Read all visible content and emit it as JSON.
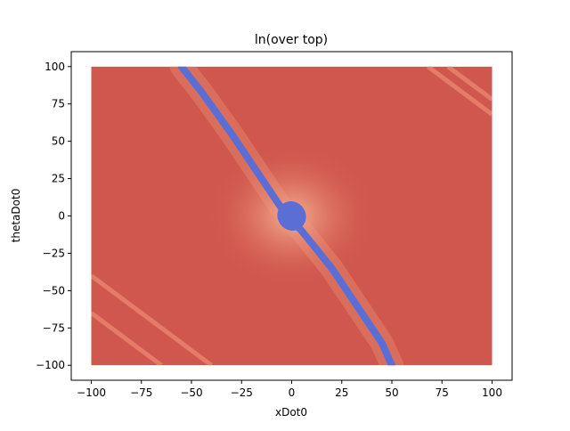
{
  "chart_data": {
    "type": "heatmap",
    "title": "ln(over top)",
    "xlabel": "xDot0",
    "ylabel": "thetaDot0",
    "xlim": [
      -110,
      110
    ],
    "ylim": [
      -110,
      110
    ],
    "data_extent": {
      "x": [
        -100,
        100
      ],
      "y": [
        -100,
        100
      ]
    },
    "xticks": [
      -100,
      -75,
      -50,
      -25,
      0,
      25,
      50,
      75,
      100
    ],
    "yticks": [
      -100,
      -75,
      -50,
      -25,
      0,
      25,
      50,
      75,
      100
    ],
    "grid": false,
    "colormap": "coolwarm",
    "colors": {
      "background_red": "#d0574e",
      "near_band_light": "#ee9a7b",
      "band_blue": "#5a6ed6",
      "stripe_light": "#e9866f"
    },
    "features": {
      "blue_band": {
        "description_from_plot": "low-value band",
        "polyline": [
          [
            -55,
            100
          ],
          [
            -45,
            83
          ],
          [
            -30,
            55
          ],
          [
            -15,
            25
          ],
          [
            -5,
            5
          ],
          [
            5,
            -10
          ],
          [
            20,
            -35
          ],
          [
            30,
            -55
          ],
          [
            45,
            -85
          ],
          [
            50,
            -100
          ]
        ],
        "center_blob": {
          "x": 0,
          "y": 0,
          "rx": 7,
          "ry": 10
        }
      },
      "corner_stripes": [
        {
          "from": [
            78,
            100
          ],
          "to": [
            100,
            78
          ]
        },
        {
          "from": [
            68,
            100
          ],
          "to": [
            100,
            68
          ]
        },
        {
          "from": [
            -100,
            -65
          ],
          "to": [
            -65,
            -100
          ]
        },
        {
          "from": [
            -100,
            -40
          ],
          "to": [
            -40,
            -100
          ]
        }
      ]
    }
  }
}
